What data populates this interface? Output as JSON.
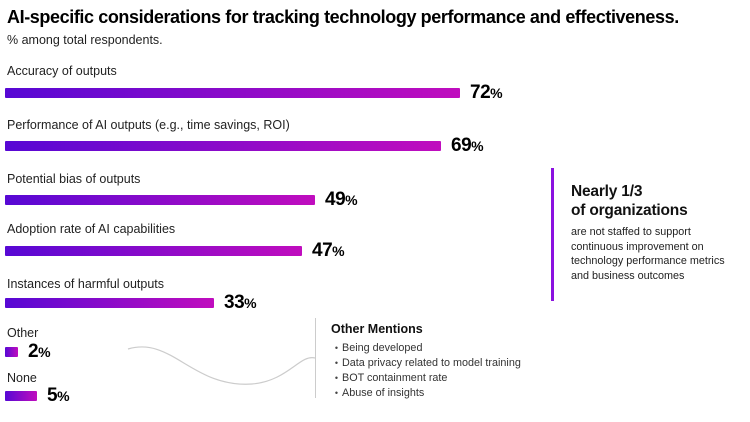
{
  "header": {
    "title": "AI-specific considerations for tracking technology performance and effectiveness.",
    "subtitle": "% among total respondents."
  },
  "chart_data": {
    "type": "bar",
    "orientation": "horizontal",
    "unit": "%",
    "categories": [
      "Accuracy of outputs",
      "Performance of AI outputs (e.g., time savings, ROI)",
      "Potential bias of outputs",
      "Adoption rate of AI capabilities",
      "Instances of harmful outputs",
      "Other",
      "None"
    ],
    "values": [
      72,
      69,
      49,
      47,
      33,
      2,
      5
    ],
    "xlim": [
      0,
      72
    ],
    "grid": false,
    "legend": "none",
    "bar_gradient_start": "#5708d4",
    "bar_gradient_end": "#c00dbe"
  },
  "other_mentions": {
    "title": "Other Mentions",
    "items": [
      "Being developed",
      "Data privacy related to model training",
      "BOT containment rate",
      "Abuse of insights"
    ]
  },
  "callout": {
    "accent_color": "#8b12e0",
    "heading_line1": "Nearly 1/3",
    "heading_line2": "of organizations",
    "body": "are not staffed to support continuous improvement on technology performance metrics and business outcomes"
  }
}
